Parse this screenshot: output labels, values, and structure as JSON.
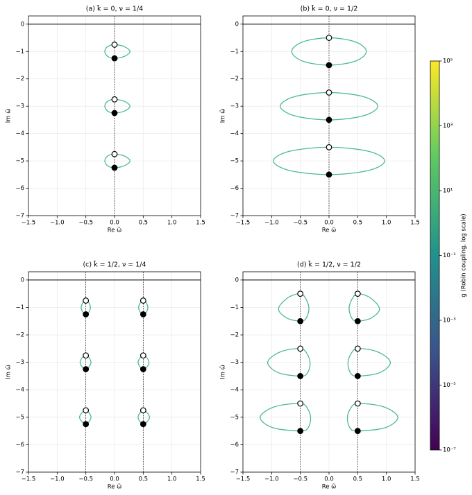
{
  "chart_data": [
    {
      "type": "scatter",
      "title": "(a) k̃ = 0,  ν = 1/4",
      "xlabel": "Re ω̃",
      "ylabel": "Im ω̃",
      "xlim": [
        -1.5,
        1.5
      ],
      "ylim": [
        -7,
        0.3
      ],
      "grid": true,
      "hline": 0,
      "vlines": [
        0
      ],
      "xticks": [
        {
          "value": -1.5,
          "label": "−1.5"
        },
        {
          "value": -1,
          "label": "−1.0"
        },
        {
          "value": -0.5,
          "label": "−0.5"
        },
        {
          "value": 0,
          "label": "0.0"
        },
        {
          "value": 0.5,
          "label": "0.5"
        },
        {
          "value": 1,
          "label": "1.0"
        },
        {
          "value": 1.5,
          "label": "1.5"
        }
      ],
      "yticks": [
        0,
        {
          "value": -1,
          "label": "−1"
        },
        {
          "value": -2,
          "label": "−2"
        },
        {
          "value": -3,
          "label": "−3"
        },
        {
          "value": -4,
          "label": "−4"
        },
        {
          "value": -5,
          "label": "−5"
        },
        {
          "value": -6,
          "label": "−6"
        },
        {
          "value": -7,
          "label": "−7"
        }
      ],
      "loop_color": "#4cb89b",
      "loops": [
        {
          "x": [
            0,
            0.17,
            0.27,
            0.17,
            0,
            -0.12,
            -0.17,
            -0.12,
            0
          ],
          "y": [
            -0.75,
            -0.82,
            -1,
            -1.18,
            -1.25,
            -1.18,
            -1,
            -0.82,
            -0.75
          ]
        },
        {
          "x": [
            0,
            0.17,
            0.27,
            0.17,
            0,
            -0.12,
            -0.17,
            -0.12,
            0
          ],
          "y": [
            -2.75,
            -2.82,
            -3,
            -3.18,
            -3.25,
            -3.18,
            -3,
            -2.82,
            -2.75
          ]
        },
        {
          "x": [
            0,
            0.17,
            0.27,
            0.17,
            0,
            -0.12,
            -0.17,
            -0.12,
            0
          ],
          "y": [
            -4.75,
            -4.82,
            -5,
            -5.18,
            -5.25,
            -5.18,
            -5,
            -4.82,
            -4.75
          ]
        }
      ],
      "open_points": {
        "x": [
          0,
          0,
          0
        ],
        "y": [
          -0.75,
          -2.75,
          -4.75
        ]
      },
      "filled_points": {
        "x": [
          0,
          0,
          0
        ],
        "y": [
          -1.25,
          -3.25,
          -5.25
        ]
      }
    },
    {
      "type": "scatter",
      "title": "(b) k̃ = 0,  ν = 1/2",
      "xlabel": "Re ω̃",
      "ylabel": "Im ω̃",
      "xlim": [
        -1.5,
        1.5
      ],
      "ylim": [
        -7,
        0.3
      ],
      "grid": true,
      "hline": 0,
      "vlines": [
        0
      ],
      "xticks": [
        {
          "value": -1.5,
          "label": "−1.5"
        },
        {
          "value": -1,
          "label": "−1.0"
        },
        {
          "value": -0.5,
          "label": "−0.5"
        },
        {
          "value": 0,
          "label": "0.0"
        },
        {
          "value": 0.5,
          "label": "0.5"
        },
        {
          "value": 1,
          "label": "1.0"
        },
        {
          "value": 1.5,
          "label": "1.5"
        }
      ],
      "yticks": [
        0,
        {
          "value": -1,
          "label": "−1"
        },
        {
          "value": -2,
          "label": "−2"
        },
        {
          "value": -3,
          "label": "−3"
        },
        {
          "value": -4,
          "label": "−4"
        },
        {
          "value": -5,
          "label": "−5"
        },
        {
          "value": -6,
          "label": "−6"
        },
        {
          "value": -7,
          "label": "−7"
        }
      ],
      "loop_color": "#4cb89b",
      "loops": [
        {
          "x": [
            0,
            0.46,
            0.65,
            0.46,
            0,
            -0.46,
            -0.65,
            -0.46,
            0
          ],
          "y": [
            -0.5,
            -0.65,
            -1,
            -1.35,
            -1.5,
            -1.35,
            -1,
            -0.65,
            -0.5
          ]
        },
        {
          "x": [
            0,
            0.6,
            0.85,
            0.6,
            0,
            -0.6,
            -0.85,
            -0.6,
            0
          ],
          "y": [
            -2.5,
            -2.65,
            -3,
            -3.35,
            -3.5,
            -3.35,
            -3,
            -2.65,
            -2.5
          ]
        },
        {
          "x": [
            0,
            0.69,
            0.97,
            0.69,
            0,
            -0.69,
            -0.97,
            -0.69,
            0
          ],
          "y": [
            -4.5,
            -4.65,
            -5,
            -5.35,
            -5.5,
            -5.35,
            -5,
            -4.65,
            -4.5
          ]
        }
      ],
      "open_points": {
        "x": [
          0,
          0,
          0
        ],
        "y": [
          -0.5,
          -2.5,
          -4.5
        ]
      },
      "filled_points": {
        "x": [
          0,
          0,
          0
        ],
        "y": [
          -1.5,
          -3.5,
          -5.5
        ]
      }
    },
    {
      "type": "scatter",
      "title": "(c) k̃ = 1/2,  ν = 1/4",
      "xlabel": "Re ω̃",
      "ylabel": "Im ω̃",
      "xlim": [
        -1.5,
        1.5
      ],
      "ylim": [
        -7,
        0.3
      ],
      "grid": true,
      "hline": 0,
      "vlines": [
        -0.5,
        0.5
      ],
      "xticks": [
        {
          "value": -1.5,
          "label": "−1.5"
        },
        {
          "value": -1,
          "label": "−1.0"
        },
        {
          "value": -0.5,
          "label": "−0.5"
        },
        {
          "value": 0,
          "label": "0.0"
        },
        {
          "value": 0.5,
          "label": "0.5"
        },
        {
          "value": 1,
          "label": "1.0"
        },
        {
          "value": 1.5,
          "label": "1.5"
        }
      ],
      "yticks": [
        0,
        {
          "value": -1,
          "label": "−1"
        },
        {
          "value": -2,
          "label": "−2"
        },
        {
          "value": -3,
          "label": "−3"
        },
        {
          "value": -4,
          "label": "−4"
        },
        {
          "value": -5,
          "label": "−5"
        },
        {
          "value": -6,
          "label": "−6"
        },
        {
          "value": -7,
          "label": "−7"
        }
      ],
      "loop_color": "#4cb89b",
      "loops": [
        {
          "x": [
            -0.5,
            -0.45,
            -0.42,
            -0.45,
            -0.5,
            -0.55,
            -0.58,
            -0.55,
            -0.5
          ],
          "y": [
            -0.75,
            -0.82,
            -1,
            -1.18,
            -1.25,
            -1.18,
            -1,
            -0.82,
            -0.75
          ]
        },
        {
          "x": [
            0.5,
            0.55,
            0.58,
            0.55,
            0.5,
            0.45,
            0.42,
            0.45,
            0.5
          ],
          "y": [
            -0.75,
            -0.82,
            -1,
            -1.18,
            -1.25,
            -1.18,
            -1,
            -0.82,
            -0.75
          ]
        },
        {
          "x": [
            -0.5,
            -0.45,
            -0.41,
            -0.45,
            -0.5,
            -0.56,
            -0.6,
            -0.56,
            -0.5
          ],
          "y": [
            -2.75,
            -2.82,
            -3,
            -3.18,
            -3.25,
            -3.18,
            -3,
            -2.82,
            -2.75
          ]
        },
        {
          "x": [
            0.5,
            0.56,
            0.6,
            0.56,
            0.5,
            0.45,
            0.41,
            0.45,
            0.5
          ],
          "y": [
            -2.75,
            -2.82,
            -3,
            -3.18,
            -3.25,
            -3.18,
            -3,
            -2.82,
            -2.75
          ]
        },
        {
          "x": [
            -0.5,
            -0.45,
            -0.41,
            -0.45,
            -0.5,
            -0.56,
            -0.61,
            -0.56,
            -0.5
          ],
          "y": [
            -4.75,
            -4.82,
            -5,
            -5.18,
            -5.25,
            -5.18,
            -5,
            -4.82,
            -4.75
          ]
        },
        {
          "x": [
            0.5,
            0.56,
            0.61,
            0.56,
            0.5,
            0.45,
            0.41,
            0.45,
            0.5
          ],
          "y": [
            -4.75,
            -4.82,
            -5,
            -5.18,
            -5.25,
            -5.18,
            -5,
            -4.82,
            -4.75
          ]
        }
      ],
      "open_points": {
        "x": [
          -0.5,
          0.5,
          -0.5,
          0.5,
          -0.5,
          0.5
        ],
        "y": [
          -0.75,
          -0.75,
          -2.75,
          -2.75,
          -4.75,
          -4.75
        ]
      },
      "filled_points": {
        "x": [
          -0.5,
          0.5,
          -0.5,
          0.5,
          -0.5,
          0.5
        ],
        "y": [
          -1.25,
          -1.25,
          -3.25,
          -3.25,
          -5.25,
          -5.25
        ]
      }
    },
    {
      "type": "scatter",
      "title": "(d) k̃ = 1/2,  ν = 1/2",
      "xlabel": "Re ω̃",
      "ylabel": "Im ω̃",
      "xlim": [
        -1.5,
        1.5
      ],
      "ylim": [
        -7,
        0.3
      ],
      "grid": true,
      "hline": 0,
      "vlines": [
        -0.5,
        0.5
      ],
      "xticks": [
        {
          "value": -1.5,
          "label": "−1.5"
        },
        {
          "value": -1,
          "label": "−1.0"
        },
        {
          "value": -0.5,
          "label": "−0.5"
        },
        {
          "value": 0,
          "label": "0.0"
        },
        {
          "value": 0.5,
          "label": "0.5"
        },
        {
          "value": 1,
          "label": "1.0"
        },
        {
          "value": 1.5,
          "label": "1.5"
        }
      ],
      "yticks": [
        0,
        {
          "value": -1,
          "label": "−1"
        },
        {
          "value": -2,
          "label": "−2"
        },
        {
          "value": -3,
          "label": "−3"
        },
        {
          "value": -4,
          "label": "−4"
        },
        {
          "value": -5,
          "label": "−5"
        },
        {
          "value": -6,
          "label": "−6"
        },
        {
          "value": -7,
          "label": "−7"
        }
      ],
      "loop_color": "#4cb89b",
      "loops": [
        {
          "x": [
            -0.5,
            -0.72,
            -0.88,
            -0.74,
            -0.5,
            -0.4,
            -0.35,
            -0.4,
            -0.5
          ],
          "y": [
            -0.5,
            -0.65,
            -1.05,
            -1.38,
            -1.5,
            -1.4,
            -1.05,
            -0.7,
            -0.5
          ]
        },
        {
          "x": [
            0.5,
            0.72,
            0.88,
            0.74,
            0.5,
            0.4,
            0.35,
            0.4,
            0.5
          ],
          "y": [
            -0.5,
            -0.65,
            -1.05,
            -1.38,
            -1.5,
            -1.4,
            -1.05,
            -0.7,
            -0.5
          ]
        },
        {
          "x": [
            -0.5,
            -0.85,
            -1.07,
            -0.88,
            -0.5,
            -0.38,
            -0.33,
            -0.38,
            -0.5
          ],
          "y": [
            -2.5,
            -2.62,
            -3,
            -3.38,
            -3.5,
            -3.4,
            -3.05,
            -2.7,
            -2.5
          ]
        },
        {
          "x": [
            0.5,
            0.85,
            1.07,
            0.88,
            0.5,
            0.38,
            0.33,
            0.38,
            0.5
          ],
          "y": [
            -2.5,
            -2.62,
            -3,
            -3.38,
            -3.5,
            -3.4,
            -3.05,
            -2.7,
            -2.5
          ]
        },
        {
          "x": [
            -0.5,
            -0.95,
            -1.2,
            -0.98,
            -0.5,
            -0.37,
            -0.32,
            -0.37,
            -0.5
          ],
          "y": [
            -4.5,
            -4.62,
            -5,
            -5.38,
            -5.5,
            -5.4,
            -5.05,
            -4.7,
            -4.5
          ]
        },
        {
          "x": [
            0.5,
            0.95,
            1.2,
            0.98,
            0.5,
            0.37,
            0.32,
            0.37,
            0.5
          ],
          "y": [
            -4.5,
            -4.62,
            -5,
            -5.38,
            -5.5,
            -5.4,
            -5.05,
            -4.7,
            -4.5
          ]
        }
      ],
      "open_points": {
        "x": [
          -0.5,
          0.5,
          -0.5,
          0.5,
          -0.5,
          0.5
        ],
        "y": [
          -0.5,
          -0.5,
          -2.5,
          -2.5,
          -4.5,
          -4.5
        ]
      },
      "filled_points": {
        "x": [
          -0.5,
          0.5,
          -0.5,
          0.5,
          -0.5,
          0.5
        ],
        "y": [
          -1.5,
          -1.5,
          -3.5,
          -3.5,
          -5.5,
          -5.5
        ]
      }
    },
    {
      "type": "colorbar",
      "label": "g (Robin coupling, log scale)",
      "log_scale": true,
      "ylim": [
        1e-07,
        100000
      ],
      "yticks": [
        {
          "value": 1e-07,
          "label": "10⁻⁷"
        },
        {
          "value": 1e-05,
          "label": "10⁻⁵"
        },
        {
          "value": 0.001,
          "label": "10⁻³"
        },
        {
          "value": 0.1,
          "label": "10⁻¹"
        },
        {
          "value": 10,
          "label": "10¹"
        },
        {
          "value": 1000,
          "label": "10³"
        },
        {
          "value": 100000,
          "label": "10⁵"
        }
      ],
      "colormap": [
        "#440154",
        "#3b528b",
        "#21918c",
        "#5ec962",
        "#fde725"
      ]
    }
  ]
}
